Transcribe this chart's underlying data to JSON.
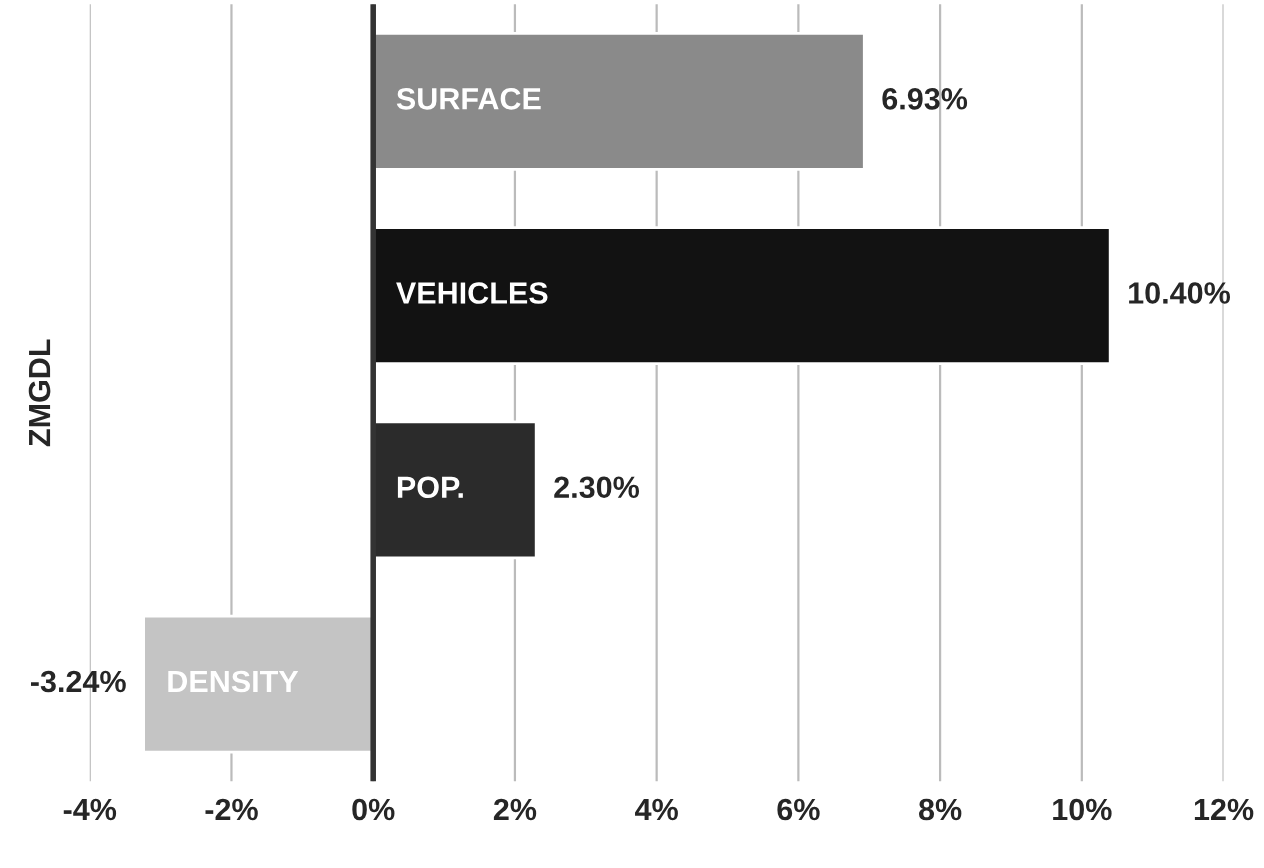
{
  "chart_data": {
    "type": "bar",
    "orientation": "horizontal",
    "ylabel": "ZMGDL",
    "categories": [
      "SURFACE",
      "VEHICLES",
      "POP.",
      "DENSITY"
    ],
    "values": [
      6.93,
      10.4,
      2.3,
      -3.24
    ],
    "colors": [
      "#8a8a8a",
      "#121212",
      "#2b2b2b",
      "#c4c4c4"
    ],
    "value_labels": [
      "6.93%",
      "10.40%",
      "2.30%",
      "-3.24%"
    ],
    "xlim": [
      -4,
      12
    ],
    "xticks": [
      {
        "value": -4,
        "label": "-4%"
      },
      {
        "value": -2,
        "label": "-2%"
      },
      {
        "value": 0,
        "label": "0%"
      },
      {
        "value": 2,
        "label": "2%"
      },
      {
        "value": 4,
        "label": "4%"
      },
      {
        "value": 6,
        "label": "6%"
      },
      {
        "value": 8,
        "label": "8%"
      },
      {
        "value": 10,
        "label": "10%"
      },
      {
        "value": 12,
        "label": "12%"
      }
    ],
    "grid": "x"
  }
}
